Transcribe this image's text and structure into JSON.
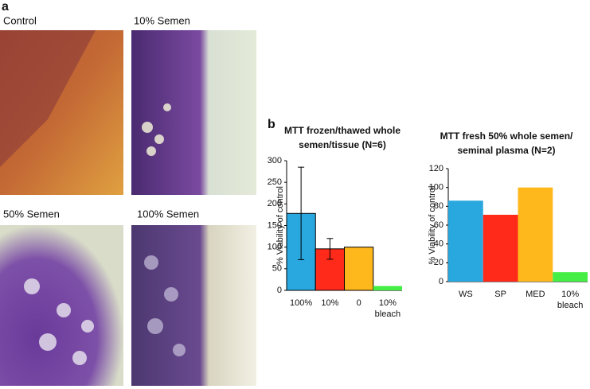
{
  "panel_labels": [
    "a",
    "b"
  ],
  "images": [
    {
      "label": "Control"
    },
    {
      "label": "10% Semen"
    },
    {
      "label": "50% Semen"
    },
    {
      "label": "100% Semen"
    }
  ],
  "chart_data": [
    {
      "type": "bar",
      "title": [
        "MTT frozen/thawed whole",
        "semen/tissue (N=6)"
      ],
      "ylabel": "% Viability of control",
      "categories": [
        "100%",
        "10%",
        "0",
        "10% bleach"
      ],
      "values": [
        178,
        96,
        100,
        10
      ],
      "errors": [
        107,
        24,
        null,
        null
      ],
      "colors": [
        "#29a8e0",
        "#ff2a1a",
        "#ffb81c",
        "#44ee44"
      ],
      "edgecolor": "#000000",
      "ylim": [
        0,
        300
      ],
      "yticks": [
        0,
        50,
        100,
        150,
        200,
        250,
        300
      ],
      "grid": false
    },
    {
      "type": "bar",
      "title": [
        "MTT fresh 50% whole semen/",
        "seminal plasma (N=2)"
      ],
      "ylabel": "% Viability of control",
      "categories": [
        "WS",
        "SP",
        "MED",
        "10% bleach"
      ],
      "values": [
        86,
        71,
        100,
        10
      ],
      "colors": [
        "#29a8e0",
        "#ff2a1a",
        "#ffb81c",
        "#44ee44"
      ],
      "ylim": [
        0,
        120
      ],
      "yticks": [
        0,
        20,
        40,
        60,
        80,
        100,
        120
      ],
      "grid": false
    }
  ]
}
